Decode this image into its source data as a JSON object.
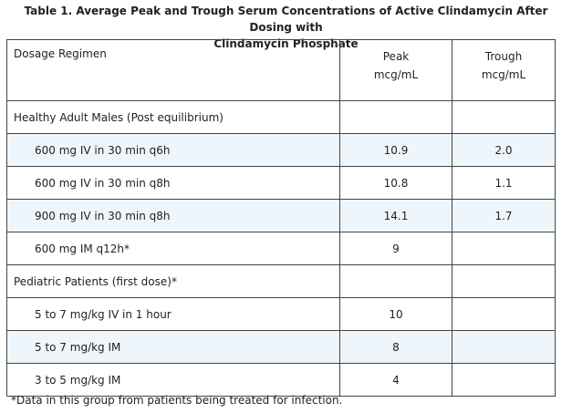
{
  "caption": {
    "line1": "Table 1. Average Peak and Trough Serum Concentrations of Active Clindamycin After Dosing with",
    "line2": "Clindamycin Phosphate"
  },
  "header": {
    "regimen": "Dosage Regimen",
    "peak_line1": "Peak",
    "peak_line2": "mcg/mL",
    "trough_line1": "Trough",
    "trough_line2": "mcg/mL"
  },
  "groups": [
    {
      "label": "Healthy Adult Males (Post equilibrium)",
      "rows": [
        {
          "regimen": "600 mg IV in 30 min q6h",
          "peak": "10.9",
          "trough": "2.0"
        },
        {
          "regimen": "600 mg IV in 30 min q8h",
          "peak": "10.8",
          "trough": "1.1"
        },
        {
          "regimen": "900 mg IV in 30 min q8h",
          "peak": "14.1",
          "trough": "1.7"
        },
        {
          "regimen": "600 mg IM q12h*",
          "peak": "9",
          "trough": ""
        }
      ]
    },
    {
      "label": "Pediatric Patients (first dose)*",
      "rows": [
        {
          "regimen": "5 to 7 mg/kg IV in 1 hour",
          "peak": "10",
          "trough": ""
        },
        {
          "regimen": "5 to 7 mg/kg IM",
          "peak": "8",
          "trough": ""
        },
        {
          "regimen": "3 to 5 mg/kg IM",
          "peak": "4",
          "trough": ""
        }
      ]
    }
  ],
  "footnote": "*Data in this group from patients being treated for infection.",
  "colors": {
    "shaded_row": "#eef6fb",
    "border": "#444444",
    "text": "#222222"
  }
}
